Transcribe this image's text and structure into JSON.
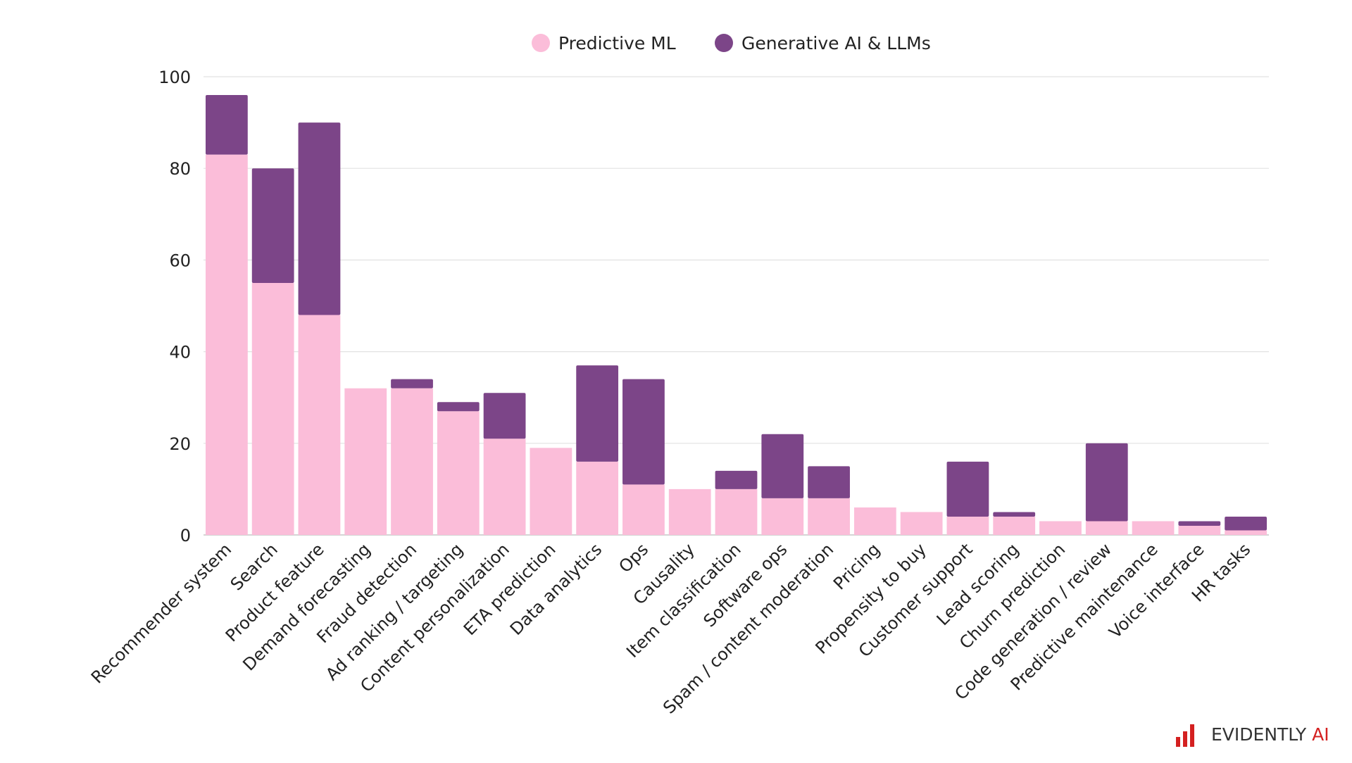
{
  "chart_data": {
    "type": "bar",
    "stacked": true,
    "title": "",
    "xlabel": "",
    "ylabel": "",
    "ylim": [
      0,
      100
    ],
    "yticks": [
      0,
      20,
      40,
      60,
      80,
      100
    ],
    "grid": true,
    "legend_position": "top-center",
    "categories": [
      "Recommender system",
      "Search",
      "Product feature",
      "Demand forecasting",
      "Fraud detection",
      "Ad ranking / targeting",
      "Content personalization",
      "ETA prediction",
      "Data analytics",
      "Ops",
      "Causality",
      "Item classification",
      "Software ops",
      "Spam / content moderation",
      "Pricing",
      "Propensity to buy",
      "Customer support",
      "Lead scoring",
      "Churn prediction",
      "Code generation / review",
      "Predictive maintenance",
      "Voice interface",
      "HR tasks"
    ],
    "series": [
      {
        "name": "Predictive ML",
        "color": "#fbbdd9",
        "values": [
          83,
          55,
          48,
          32,
          32,
          27,
          21,
          19,
          16,
          11,
          10,
          10,
          8,
          8,
          6,
          5,
          4,
          4,
          3,
          3,
          3,
          2,
          1
        ]
      },
      {
        "name": "Generative AI & LLMs",
        "color": "#7c4588",
        "values": [
          13,
          25,
          42,
          0,
          2,
          2,
          10,
          0,
          21,
          23,
          0,
          4,
          14,
          7,
          0,
          0,
          12,
          1,
          0,
          17,
          0,
          1,
          3
        ]
      }
    ]
  },
  "logo": {
    "text": "EVIDENTLY AI",
    "color": "#d42020"
  }
}
